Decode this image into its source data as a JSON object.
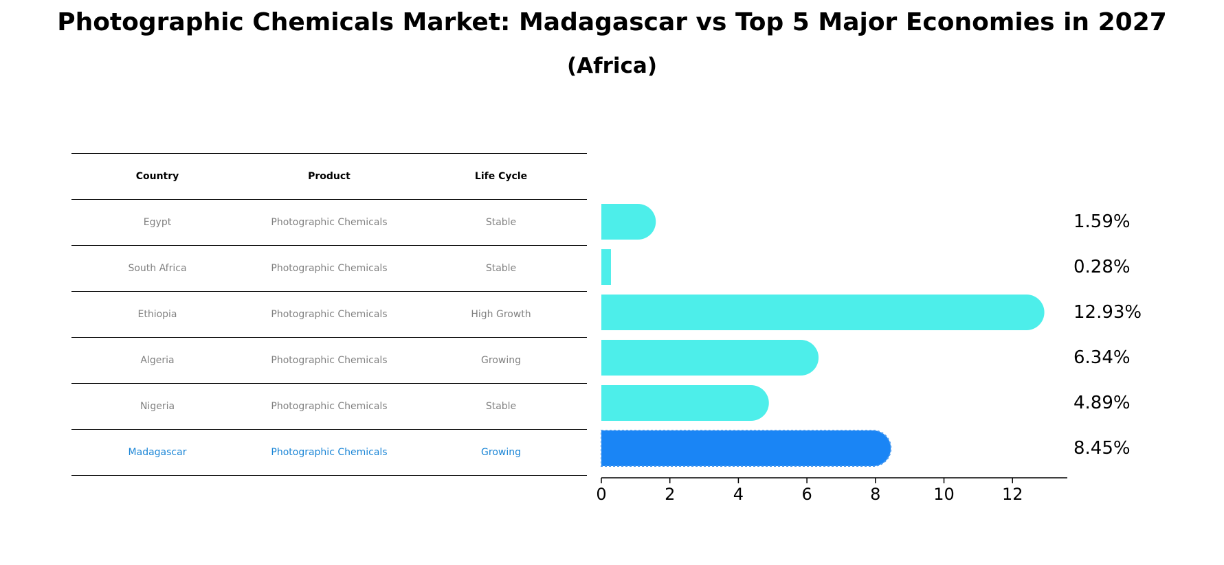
{
  "title": "Photographic Chemicals Market: Madagascar vs Top 5 Major Economies in 2027",
  "subtitle": "(Africa)",
  "table": {
    "headers": [
      "Country",
      "Product",
      "Life Cycle"
    ],
    "rows": [
      [
        "Egypt",
        "Photographic Chemicals",
        "Stable"
      ],
      [
        "South Africa",
        "Photographic Chemicals",
        "Stable"
      ],
      [
        "Ethiopia",
        "Photographic Chemicals",
        "High Growth"
      ],
      [
        "Algeria",
        "Photographic Chemicals",
        "Growing"
      ],
      [
        "Nigeria",
        "Photographic Chemicals",
        "Stable"
      ],
      [
        "Madagascar",
        "Photographic Chemicals",
        "Growing"
      ]
    ]
  },
  "chart_data": {
    "type": "bar",
    "orientation": "horizontal",
    "title": "Photographic Chemicals Market: Madagascar vs Top 5 Major Economies in 2027",
    "subtitle": "(Africa)",
    "categories": [
      "Egypt",
      "South Africa",
      "Ethiopia",
      "Algeria",
      "Nigeria",
      "Madagascar"
    ],
    "values": [
      1.59,
      0.28,
      12.93,
      6.34,
      4.89,
      8.45
    ],
    "value_labels": [
      "1.59%",
      "0.28%",
      "12.93%",
      "6.34%",
      "4.89%",
      "8.45%"
    ],
    "highlight": "Madagascar",
    "xlim": [
      0,
      13.6
    ],
    "xticks": [
      0,
      2,
      4,
      6,
      8,
      10,
      12
    ],
    "xlabel": "",
    "ylabel": "",
    "grid": false,
    "colors": {
      "default": "#4deeea",
      "highlight": "#1a85f5"
    }
  }
}
